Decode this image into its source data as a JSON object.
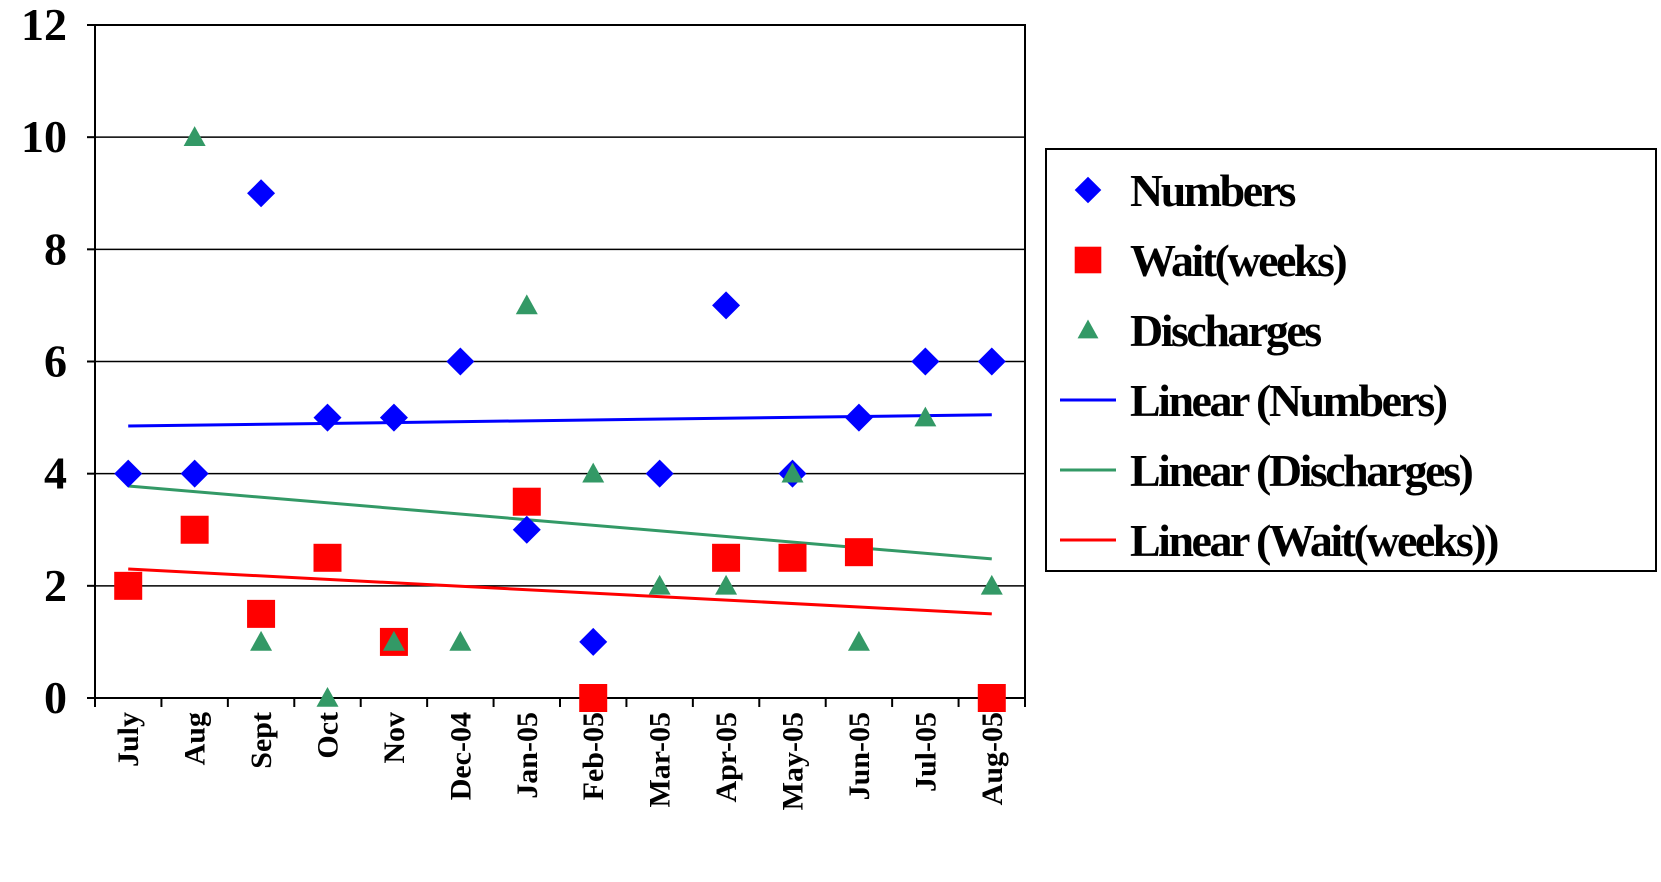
{
  "chart_data": {
    "type": "scatter",
    "categories": [
      "July",
      "Aug",
      "Sept",
      "Oct",
      "Nov",
      "Dec-04",
      "Jan-05",
      "Feb-05",
      "Mar-05",
      "Apr-05",
      "May-05",
      "Jun-05",
      "Jul-05",
      "Aug-05"
    ],
    "ylim": [
      0,
      12
    ],
    "yticks": [
      0,
      2,
      4,
      6,
      8,
      10,
      12
    ],
    "grid": true,
    "legend_position": "right",
    "series": [
      {
        "name": "Numbers",
        "marker": "diamond",
        "color": "#0000FF",
        "values": [
          4,
          4,
          9,
          5,
          5,
          6,
          3,
          1,
          4,
          7,
          4,
          5,
          6,
          6
        ]
      },
      {
        "name": "Wait(weeks)",
        "marker": "square",
        "color": "#FF0000",
        "values": [
          2,
          3,
          1.5,
          2.5,
          1,
          null,
          3.5,
          0,
          null,
          2.5,
          2.5,
          2.6,
          null,
          0
        ]
      },
      {
        "name": "Discharges",
        "marker": "triangle",
        "color": "#339966",
        "values": [
          null,
          10,
          1,
          0,
          1,
          1,
          7,
          4,
          2,
          2,
          4,
          1,
          5,
          2
        ]
      }
    ],
    "trendlines": [
      {
        "name": "Linear (Numbers)",
        "color": "#0000FF",
        "start": 4.85,
        "end": 5.05
      },
      {
        "name": "Linear (Discharges)",
        "color": "#339966",
        "start": 3.78,
        "end": 2.48
      },
      {
        "name": "Linear (Wait(weeks))",
        "color": "#FF0000",
        "start": 2.3,
        "end": 1.5
      }
    ]
  }
}
